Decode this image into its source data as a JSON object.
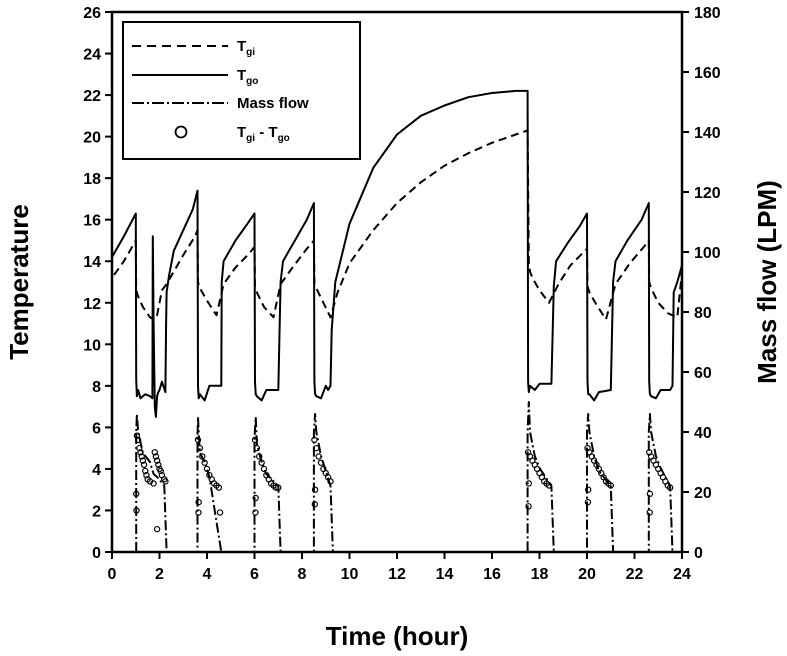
{
  "chart_data": {
    "type": "line",
    "xlabel": "Time (hour)",
    "ylabel": "Temperature",
    "y2label": "Mass flow (LPM)",
    "xlim": [
      0,
      24
    ],
    "ylim": [
      0,
      26
    ],
    "y2lim": [
      0,
      180
    ],
    "xticks": [
      0,
      2,
      4,
      6,
      8,
      10,
      12,
      14,
      16,
      18,
      20,
      22,
      24
    ],
    "yticks": [
      0,
      2,
      4,
      6,
      8,
      10,
      12,
      14,
      16,
      18,
      20,
      22,
      24,
      26
    ],
    "y2ticks": [
      0,
      20,
      40,
      60,
      80,
      100,
      120,
      140,
      160,
      180
    ],
    "grid": false,
    "legend_position": "top-left",
    "legend": [
      {
        "base": "T",
        "sub": "gi",
        "style": "dashed"
      },
      {
        "base": "T",
        "sub": "go",
        "style": "solid"
      },
      {
        "base": "Mass flow",
        "sub": "",
        "style": "dash-dot"
      },
      {
        "base": "T",
        "sub": "gi",
        "mid": " - T",
        "sub2": "go",
        "style": "circle"
      }
    ],
    "series": [
      {
        "key": "tgi",
        "axis": "left",
        "style": "dashed",
        "x": [
          -0.3,
          0,
          0.5,
          1.0,
          1.02,
          1.1,
          1.3,
          1.6,
          1.75,
          1.9,
          2.1,
          2.3,
          2.6,
          3.0,
          3.5,
          3.6,
          3.62,
          3.7,
          4.0,
          4.4,
          4.7,
          5.2,
          5.8,
          6.0,
          6.02,
          6.1,
          6.4,
          6.8,
          7.1,
          7.6,
          8.2,
          8.5,
          8.52,
          8.6,
          8.9,
          9.2,
          9.5,
          10,
          11,
          12,
          13,
          14,
          15,
          16,
          17,
          17.5,
          17.55,
          17.6,
          17.7,
          18.0,
          18.4,
          18.8,
          19.3,
          20.0,
          20.02,
          20.1,
          20.4,
          20.8,
          21.2,
          21.8,
          22.4,
          22.6,
          22.62,
          22.7,
          23.0,
          23.4,
          23.8,
          24.0
        ],
        "y": [
          12.9,
          13.2,
          14.0,
          15.0,
          12.6,
          12.3,
          11.8,
          11.3,
          11.2,
          11.4,
          12.6,
          12.9,
          13.5,
          14.3,
          15.2,
          15.5,
          13.0,
          12.7,
          12.1,
          11.4,
          12.9,
          13.7,
          14.4,
          14.7,
          12.8,
          12.5,
          11.8,
          11.3,
          12.9,
          13.7,
          14.6,
          15.0,
          12.9,
          12.7,
          12.0,
          11.3,
          12.5,
          13.9,
          15.5,
          16.8,
          17.8,
          18.6,
          19.2,
          19.7,
          20.1,
          20.3,
          14.0,
          13.5,
          13.2,
          12.6,
          12.0,
          12.9,
          13.8,
          14.6,
          12.8,
          12.5,
          11.9,
          11.2,
          12.9,
          13.9,
          14.7,
          15.0,
          13.0,
          12.7,
          12.0,
          11.5,
          11.3,
          13.5
        ]
      },
      {
        "key": "tgo",
        "axis": "left",
        "style": "solid",
        "x": [
          -0.3,
          0,
          0.5,
          1.0,
          1.02,
          1.05,
          1.1,
          1.2,
          1.4,
          1.6,
          1.7,
          1.72,
          1.75,
          1.8,
          1.85,
          1.9,
          1.95,
          2.0,
          2.1,
          2.25,
          2.28,
          2.3,
          2.4,
          2.6,
          3.0,
          3.4,
          3.6,
          3.62,
          3.65,
          3.7,
          3.9,
          4.1,
          4.6,
          4.62,
          4.7,
          5.2,
          5.7,
          6.0,
          6.02,
          6.05,
          6.1,
          6.3,
          6.5,
          7.0,
          7.1,
          7.2,
          7.7,
          8.2,
          8.5,
          8.52,
          8.55,
          8.6,
          8.8,
          9.0,
          9.1,
          9.2,
          9.25,
          9.4,
          10,
          11,
          12,
          13,
          14,
          15,
          16,
          17,
          17.5,
          17.52,
          17.55,
          17.6,
          17.8,
          18.0,
          18.5,
          18.6,
          18.7,
          19.2,
          19.7,
          20.0,
          20.02,
          20.05,
          20.1,
          20.3,
          20.5,
          21.0,
          21.1,
          21.2,
          21.7,
          22.3,
          22.6,
          22.62,
          22.65,
          22.7,
          22.9,
          23.1,
          23.5,
          23.6,
          23.65,
          23.8,
          24.0
        ],
        "y": [
          13.2,
          14.2,
          15.2,
          16.3,
          8.3,
          7.5,
          7.8,
          7.4,
          7.6,
          7.5,
          7.4,
          15.2,
          11.0,
          7.0,
          6.5,
          7.5,
          7.7,
          7.8,
          8.2,
          7.7,
          11.0,
          12.5,
          13.3,
          14.5,
          15.5,
          16.5,
          17.4,
          8.0,
          7.4,
          7.6,
          7.3,
          8.0,
          8.0,
          13.0,
          14.0,
          15.0,
          15.8,
          16.3,
          8.2,
          7.6,
          7.5,
          7.3,
          7.8,
          7.8,
          13.0,
          14.0,
          15.0,
          16.0,
          16.8,
          8.2,
          7.6,
          7.5,
          7.4,
          8.0,
          7.8,
          8.0,
          10.7,
          13.0,
          15.8,
          18.5,
          20.1,
          21.0,
          21.5,
          21.9,
          22.1,
          22.2,
          22.2,
          8.2,
          7.7,
          8.0,
          7.8,
          8.1,
          8.1,
          12.8,
          14.0,
          14.9,
          15.7,
          16.3,
          8.2,
          7.6,
          7.6,
          7.3,
          7.7,
          7.8,
          13.0,
          14.0,
          15.0,
          16.0,
          16.8,
          8.2,
          7.6,
          7.5,
          7.4,
          7.8,
          7.8,
          8.0,
          12.5,
          13.0,
          13.8
        ]
      },
      {
        "key": "mass_flow",
        "axis": "right",
        "style": "dash-dot",
        "x": [
          1.02,
          1.02,
          1.05,
          1.1,
          1.3,
          1.6,
          1.75,
          1.9,
          2.0,
          2.2,
          2.3,
          3.6,
          3.6,
          3.62,
          3.65,
          3.7,
          3.9,
          4.1,
          4.6,
          6.0,
          6.0,
          6.05,
          6.1,
          6.3,
          6.5,
          7.0,
          7.1,
          8.5,
          8.5,
          8.55,
          8.6,
          8.8,
          9.0,
          9.2,
          9.3,
          17.5,
          17.5,
          17.55,
          17.6,
          17.8,
          18.0,
          18.5,
          18.6,
          20.0,
          20.0,
          20.05,
          20.1,
          20.3,
          20.5,
          21.0,
          21.1,
          22.6,
          22.6,
          22.65,
          22.7,
          22.9,
          23.1,
          23.5,
          23.6
        ],
        "y": [
          0,
          40,
          46,
          40,
          33,
          30,
          26,
          25,
          24,
          22,
          0,
          0,
          38,
          45,
          40,
          33,
          30,
          25,
          0,
          0,
          38,
          45,
          36,
          30,
          26,
          22,
          0,
          0,
          40,
          46,
          40,
          32,
          27,
          22,
          0,
          0,
          40,
          50,
          40,
          32,
          28,
          22,
          0,
          0,
          40,
          46,
          40,
          32,
          27,
          22,
          0,
          0,
          40,
          46,
          40,
          32,
          28,
          22,
          0
        ]
      },
      {
        "key": "tgi_minus_tgo",
        "axis": "left",
        "style": "circle",
        "x": [
          1.05,
          1.1,
          1.15,
          1.2,
          1.25,
          1.3,
          1.35,
          1.4,
          1.45,
          1.5,
          1.6,
          1.75,
          1.8,
          1.85,
          1.9,
          1.95,
          2.0,
          2.05,
          2.1,
          2.2,
          2.25,
          1.02,
          1.03,
          1.9,
          3.62,
          3.7,
          3.8,
          3.9,
          4.0,
          4.1,
          4.2,
          4.3,
          4.4,
          4.5,
          3.65,
          3.64,
          4.55,
          6.02,
          6.1,
          6.2,
          6.3,
          6.4,
          6.5,
          6.6,
          6.7,
          6.8,
          6.9,
          7.0,
          6.05,
          6.04,
          8.52,
          8.6,
          8.7,
          8.8,
          8.9,
          9.0,
          9.1,
          9.2,
          8.55,
          8.54,
          17.52,
          17.6,
          17.7,
          17.8,
          17.9,
          18.0,
          18.1,
          18.2,
          18.3,
          18.4,
          17.55,
          17.54,
          20.02,
          20.1,
          20.2,
          20.3,
          20.4,
          20.5,
          20.6,
          20.7,
          20.8,
          20.9,
          21.0,
          20.05,
          20.04,
          22.62,
          22.7,
          22.8,
          22.9,
          23.0,
          23.1,
          23.2,
          23.3,
          23.4,
          23.5,
          22.65,
          22.64
        ],
        "y": [
          5.6,
          5.4,
          5.0,
          4.8,
          4.6,
          4.4,
          4.2,
          3.9,
          3.7,
          3.5,
          3.4,
          3.3,
          4.8,
          4.6,
          4.4,
          4.2,
          4.0,
          3.9,
          3.7,
          3.5,
          3.4,
          2.8,
          2.0,
          1.1,
          5.4,
          5.0,
          4.6,
          4.3,
          4.0,
          3.7,
          3.5,
          3.3,
          3.2,
          3.1,
          2.4,
          1.9,
          1.9,
          5.4,
          5.0,
          4.6,
          4.3,
          4.0,
          3.7,
          3.5,
          3.3,
          3.2,
          3.1,
          3.1,
          2.6,
          1.9,
          5.4,
          5.0,
          4.6,
          4.3,
          4.0,
          3.8,
          3.6,
          3.4,
          3.0,
          2.3,
          4.8,
          4.6,
          4.4,
          4.2,
          4.0,
          3.8,
          3.6,
          3.4,
          3.3,
          3.2,
          3.3,
          2.2,
          5.0,
          4.8,
          4.6,
          4.4,
          4.2,
          4.0,
          3.8,
          3.6,
          3.4,
          3.3,
          3.2,
          3.0,
          2.4,
          4.8,
          4.6,
          4.4,
          4.2,
          4.0,
          3.8,
          3.6,
          3.4,
          3.2,
          3.1,
          2.8,
          1.9
        ]
      }
    ]
  }
}
